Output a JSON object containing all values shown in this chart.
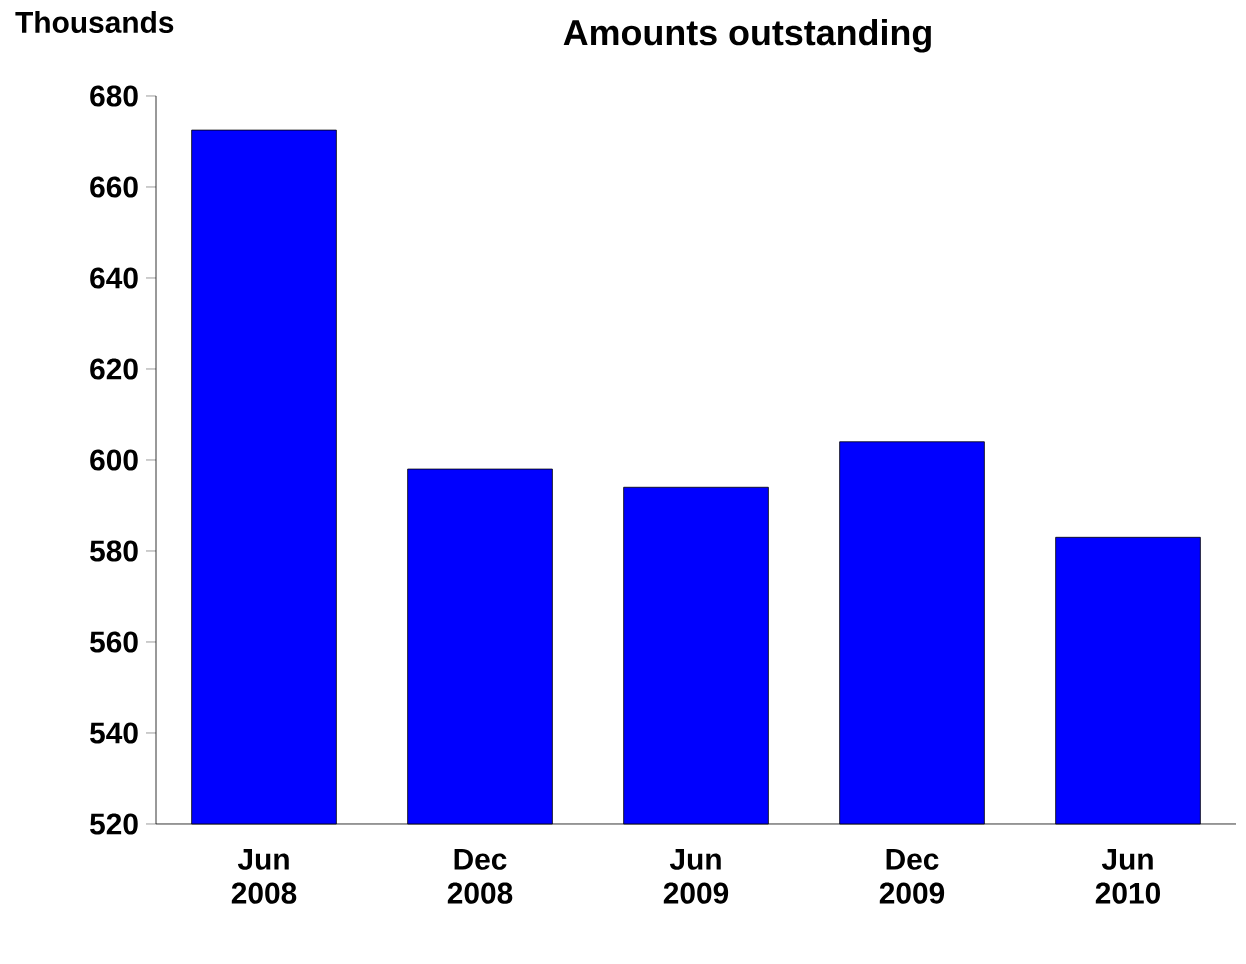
{
  "chart_data": {
    "type": "bar",
    "title": "Amounts outstanding",
    "ylabel": "Thousands",
    "categories": [
      "Jun 2008",
      "Dec 2008",
      "Jun 2009",
      "Dec 2009",
      "Jun 2010"
    ],
    "values": [
      672.5,
      598,
      594,
      604,
      583
    ],
    "color": "#0000ff",
    "ylim": [
      520,
      680
    ],
    "yticks": [
      520,
      540,
      560,
      580,
      600,
      620,
      640,
      660,
      680
    ]
  }
}
